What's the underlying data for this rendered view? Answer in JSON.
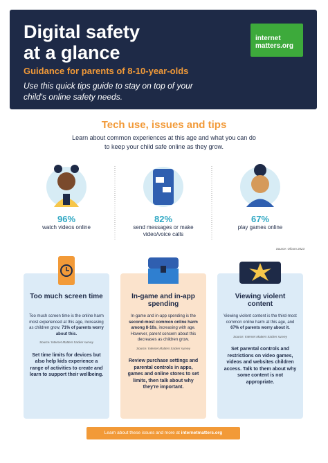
{
  "header": {
    "title": [
      "Digital safety",
      "at a glance"
    ],
    "subtitle": "Guidance for parents of 8-10-year-olds",
    "intro": "Use this quick tips guide to stay on top of your child's online safety needs.",
    "logo": [
      "internet",
      "matters.org"
    ]
  },
  "section": {
    "heading": "Tech use, issues and tips",
    "intro": "Learn about common experiences at this age and what you can do to keep your child safe online as they grow."
  },
  "stats": [
    {
      "value": "96%",
      "label": "watch videos online"
    },
    {
      "value": "82%",
      "label": "send messages or make video/voice calls"
    },
    {
      "value": "67%",
      "label": "play games online"
    }
  ],
  "stats_source": "Source: Ofcom 2023",
  "cards": [
    {
      "title": "Too much screen time",
      "body": [
        {
          "text": "Too much screen time is the online harm most experienced at this age, increasing as children grow; ",
          "bold": false
        },
        {
          "text": "71% of parents worry about this.",
          "bold": true
        }
      ],
      "source": "Source: Internet Matters tracker survey",
      "tip": "Set time limits for devices but also help kids experience a range of activities to create and learn to support their wellbeing."
    },
    {
      "title": "In-game and in-app spending",
      "body": [
        {
          "text": "In-game and in-app spending is the ",
          "bold": false
        },
        {
          "text": "second-most common online harm among 8-10s",
          "bold": true
        },
        {
          "text": ", increasing with age. However, parent concern about this decreases as children grow.",
          "bold": false
        }
      ],
      "source": "Source: Internet Matters tracker survey",
      "tip": "Review purchase settings and parental controls in apps, games and online stores to set limits, then talk about why they're important."
    },
    {
      "title": "Viewing violent content",
      "body": [
        {
          "text": "Viewing violent content is the third-most common online harm at this age, and ",
          "bold": false
        },
        {
          "text": "67% of parents worry about it.",
          "bold": true
        }
      ],
      "source": "Source: Internet Matters tracker survey",
      "tip": "Set parental controls and restrictions on video games, videos and websites children access. Talk to them about why some content is not appropriate."
    }
  ],
  "footer": {
    "text": "Learn about these issues and more at ",
    "link": "internetmatters.org"
  }
}
